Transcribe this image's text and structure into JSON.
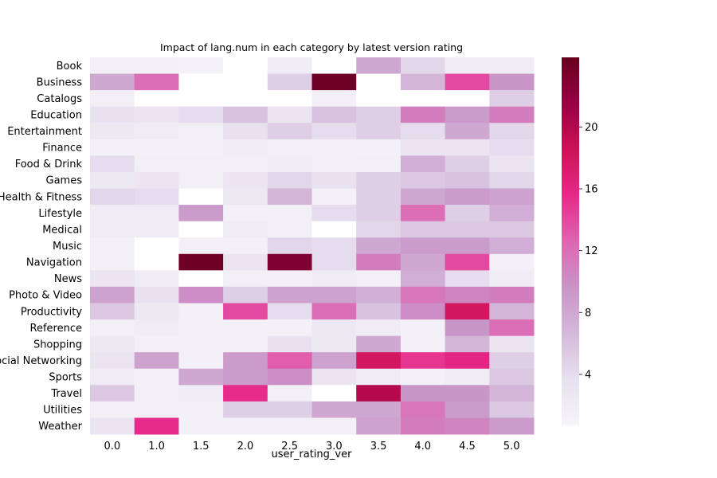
{
  "chart_data": {
    "type": "heatmap",
    "title": "Impact of lang.num in each category by latest version rating",
    "xlabel": "user_rating_ver",
    "ylabel": "",
    "x_categories": [
      "0.0",
      "1.0",
      "1.5",
      "2.0",
      "2.5",
      "3.0",
      "3.5",
      "4.0",
      "4.5",
      "5.0"
    ],
    "y_categories": [
      "Book",
      "Business",
      "Catalogs",
      "Education",
      "Entertainment",
      "Finance",
      "Food & Drink",
      "Games",
      "Health & Fitness",
      "Lifestyle",
      "Medical",
      "Music",
      "Navigation",
      "News",
      "Photo & Video",
      "Productivity",
      "Reference",
      "Shopping",
      "Social Networking",
      "Sports",
      "Travel",
      "Utilities",
      "Weather"
    ],
    "values": [
      [
        1.5,
        1.5,
        1.2,
        null,
        2.0,
        null,
        8.0,
        4.5,
        2.0,
        2.0
      ],
      [
        8.0,
        12.0,
        null,
        null,
        5.0,
        24.0,
        null,
        7.0,
        14.0,
        9.5
      ],
      [
        1.5,
        null,
        null,
        null,
        null,
        1.5,
        null,
        null,
        null,
        5.0
      ],
      [
        3.5,
        3.0,
        4.0,
        6.0,
        3.0,
        6.0,
        5.0,
        11.0,
        9.0,
        11.0
      ],
      [
        2.5,
        2.0,
        1.5,
        3.5,
        5.0,
        4.0,
        5.0,
        4.0,
        8.0,
        4.5
      ],
      [
        1.5,
        1.3,
        1.3,
        2.0,
        1.5,
        1.5,
        1.3,
        3.0,
        3.0,
        4.0
      ],
      [
        4.0,
        1.5,
        1.5,
        1.5,
        2.0,
        1.5,
        1.5,
        7.5,
        5.0,
        3.0
      ],
      [
        2.5,
        3.0,
        1.5,
        3.0,
        4.5,
        3.5,
        5.0,
        5.5,
        6.0,
        4.5
      ],
      [
        4.5,
        4.0,
        null,
        2.5,
        7.0,
        1.3,
        5.0,
        8.0,
        9.0,
        8.5
      ],
      [
        2.0,
        2.0,
        9.0,
        1.3,
        1.5,
        4.0,
        5.0,
        12.0,
        5.0,
        7.5
      ],
      [
        2.0,
        2.0,
        null,
        2.0,
        1.5,
        null,
        4.5,
        5.5,
        5.5,
        5.5
      ],
      [
        1.5,
        null,
        1.5,
        1.3,
        4.5,
        4.0,
        8.0,
        9.0,
        9.0,
        7.5
      ],
      [
        1.5,
        null,
        24.0,
        3.0,
        23.0,
        4.0,
        11.0,
        8.0,
        14.0,
        1.3
      ],
      [
        3.0,
        2.0,
        null,
        1.5,
        1.5,
        2.0,
        1.5,
        7.5,
        4.0,
        2.0
      ],
      [
        8.5,
        3.5,
        10.0,
        5.0,
        8.5,
        8.5,
        7.5,
        11.5,
        10.5,
        11.0
      ],
      [
        5.5,
        2.5,
        1.3,
        14.0,
        4.0,
        12.0,
        6.0,
        10.0,
        18.0,
        7.0
      ],
      [
        1.5,
        2.0,
        1.3,
        1.3,
        1.3,
        2.5,
        2.0,
        1.3,
        9.5,
        12.0
      ],
      [
        2.5,
        1.5,
        1.5,
        1.3,
        3.5,
        2.5,
        8.0,
        1.3,
        7.0,
        3.0
      ],
      [
        3.0,
        8.5,
        1.3,
        9.0,
        13.0,
        8.5,
        18.0,
        15.0,
        16.0,
        5.0
      ],
      [
        2.0,
        1.5,
        8.0,
        9.0,
        10.0,
        3.0,
        2.0,
        1.3,
        2.0,
        5.5
      ],
      [
        5.5,
        1.5,
        2.0,
        15.5,
        1.5,
        null,
        20.0,
        9.5,
        9.5,
        7.0
      ],
      [
        1.5,
        1.5,
        1.3,
        5.0,
        5.0,
        8.0,
        8.0,
        11.5,
        9.0,
        5.5
      ],
      [
        3.0,
        15.5,
        1.3,
        1.3,
        1.3,
        1.3,
        8.5,
        11.0,
        10.5,
        9.0
      ]
    ],
    "missing_value_color": "#ffffff",
    "colormap": "PuRd",
    "colorbar": {
      "min": 0.7,
      "max": 24.5,
      "ticks": [
        4,
        8,
        12,
        16,
        20
      ]
    },
    "colormap_stops": [
      "#f7f4f9",
      "#e7e1ef",
      "#d4b9da",
      "#c994c7",
      "#df65b0",
      "#e7298a",
      "#ce1256",
      "#980043",
      "#67001f"
    ],
    "grid": false,
    "legend": "colorbar-right"
  }
}
